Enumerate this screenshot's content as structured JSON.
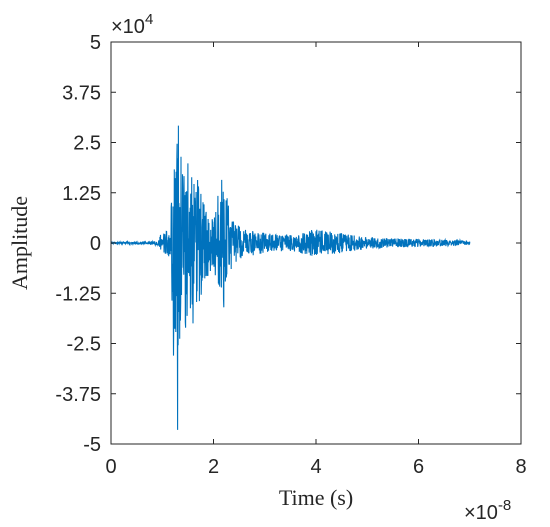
{
  "chart_data": {
    "type": "line",
    "title": "",
    "xlabel": "Time (s)",
    "ylabel": "Amplitude",
    "x_exponent": {
      "base": "×10",
      "power": "-8"
    },
    "y_exponent": {
      "base": "×10",
      "power": "4"
    },
    "xlim": [
      0,
      8
    ],
    "ylim": [
      -5,
      5
    ],
    "x_ticks": [
      0,
      2,
      4,
      6,
      8
    ],
    "x_tick_labels": [
      "0",
      "2",
      "4",
      "6",
      "8"
    ],
    "y_ticks": [
      5,
      3.75,
      2.5,
      1.25,
      0,
      -1.25,
      -2.5,
      -3.75,
      -5
    ],
    "y_tick_labels": [
      "5",
      "3.75",
      "2.5",
      "1.25",
      "0",
      "-1.25",
      "-2.5",
      "-3.75",
      "-5"
    ],
    "grid": false,
    "series": [
      {
        "color": "#0072BD",
        "x_range": [
          0,
          7.0
        ],
        "envelope": [
          [
            0,
            0.02
          ],
          [
            0.5,
            0.03
          ],
          [
            0.9,
            0.05
          ],
          [
            0.95,
            0.2
          ],
          [
            1.0,
            0.25
          ],
          [
            1.15,
            0.35
          ],
          [
            1.2,
            1.8
          ],
          [
            1.25,
            2.7
          ],
          [
            1.3,
            4.0
          ],
          [
            1.35,
            2.4
          ],
          [
            1.4,
            2.2
          ],
          [
            1.5,
            2.1
          ],
          [
            1.6,
            1.5
          ],
          [
            1.7,
            1.6
          ],
          [
            1.8,
            1.2
          ],
          [
            1.9,
            0.8
          ],
          [
            2.0,
            0.6
          ],
          [
            2.15,
            1.75
          ],
          [
            2.25,
            1.2
          ],
          [
            2.4,
            0.5
          ],
          [
            2.6,
            0.35
          ],
          [
            3.0,
            0.25
          ],
          [
            3.5,
            0.2
          ],
          [
            4.0,
            0.35
          ],
          [
            4.5,
            0.25
          ],
          [
            5.0,
            0.15
          ],
          [
            5.5,
            0.12
          ],
          [
            6.0,
            0.1
          ],
          [
            6.5,
            0.08
          ],
          [
            7.0,
            0.06
          ]
        ],
        "negative_peaks": [
          [
            1.3,
            -4.65
          ],
          [
            1.22,
            -2.8
          ],
          [
            2.2,
            -1.6
          ],
          [
            1.6,
            -2.0
          ]
        ]
      }
    ]
  }
}
